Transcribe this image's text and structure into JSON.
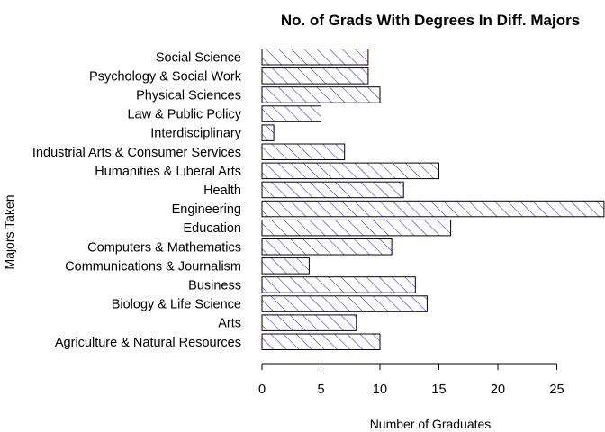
{
  "chart_data": {
    "type": "bar",
    "orientation": "horizontal",
    "title": "No. of Grads With Degrees In Diff. Majors",
    "xlabel": "Number of Graduates",
    "ylabel": "Majors Taken",
    "categories": [
      "Agriculture & Natural Resources",
      "Arts",
      "Biology & Life Science",
      "Business",
      "Communications & Journalism",
      "Computers & Mathematics",
      "Education",
      "Engineering",
      "Health",
      "Humanities & Liberal Arts",
      "Industrial Arts & Consumer Services",
      "Interdisciplinary",
      "Law & Public Policy",
      "Physical Sciences",
      "Psychology & Social Work",
      "Social Science"
    ],
    "values": [
      10,
      8,
      14,
      13,
      4,
      11,
      16,
      29,
      12,
      15,
      7,
      1,
      5,
      10,
      9,
      9
    ],
    "xticks": [
      0,
      5,
      10,
      15,
      20,
      25
    ],
    "xlim": [
      0,
      29
    ],
    "fill_pattern": "diagonal-hatch",
    "hatch_color": "#0000cc",
    "border_color": "#000000"
  }
}
